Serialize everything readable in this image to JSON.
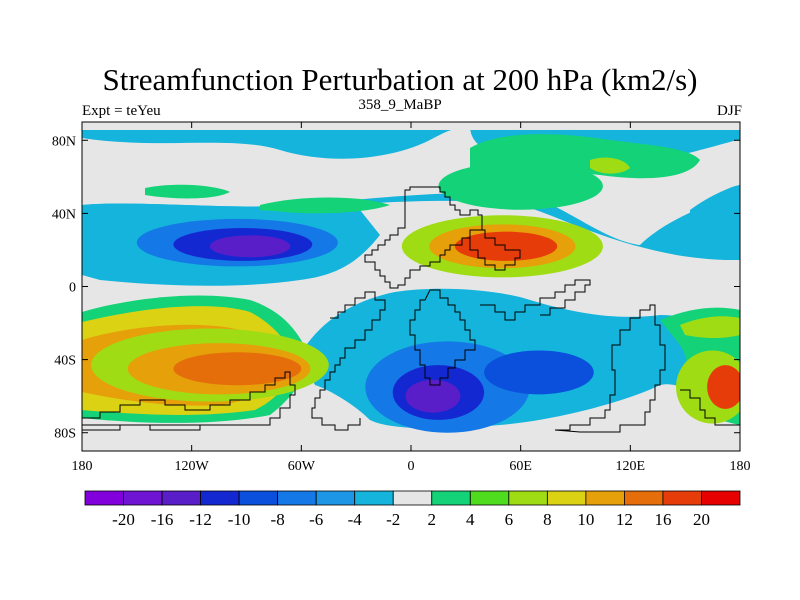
{
  "title": "Streamfunction Perturbation at 200 hPa (km2/s)",
  "left_label": "Expt = teYeu",
  "center_label": "358_9_MaBP",
  "right_label": "DJF",
  "map": {
    "projection": "cylindrical-equidistant",
    "lon_range": [
      -180,
      180
    ],
    "lat_range": [
      -90,
      90
    ],
    "x_ticks": [
      {
        "value": -180,
        "label": "180"
      },
      {
        "value": -120,
        "label": "120W"
      },
      {
        "value": -60,
        "label": "60W"
      },
      {
        "value": 0,
        "label": "0"
      },
      {
        "value": 60,
        "label": "60E"
      },
      {
        "value": 120,
        "label": "120E"
      },
      {
        "value": 180,
        "label": "180"
      }
    ],
    "y_ticks": [
      {
        "value": 80,
        "label": "80N"
      },
      {
        "value": 40,
        "label": "40N"
      },
      {
        "value": 0,
        "label": "0"
      },
      {
        "value": -40,
        "label": "40S"
      },
      {
        "value": -80,
        "label": "80S"
      }
    ]
  },
  "colorbar": {
    "labels": [
      "-20",
      "-16",
      "-12",
      "-10",
      "-8",
      "-6",
      "-4",
      "-2",
      "2",
      "4",
      "6",
      "8",
      "10",
      "12",
      "16",
      "20"
    ],
    "colors": [
      "#8200dc",
      "#6e14d2",
      "#5a1ec8",
      "#1428d2",
      "#0a50dc",
      "#1478e6",
      "#1e96e6",
      "#14b4dc",
      "#e6e6e6",
      "#14d278",
      "#50dc1e",
      "#a0dc14",
      "#dcd214",
      "#e6a00a",
      "#e66e0a",
      "#e63c0a",
      "#e60000"
    ]
  },
  "field_blobs": [
    {
      "lon": -95,
      "lat": 25,
      "rx": 70,
      "ry": 17,
      "level": -4
    },
    {
      "lon": -95,
      "lat": 24,
      "rx": 55,
      "ry": 13,
      "level": -8
    },
    {
      "lon": -92,
      "lat": 23,
      "rx": 38,
      "ry": 9,
      "level": -12
    },
    {
      "lon": -88,
      "lat": 22,
      "rx": 22,
      "ry": 6,
      "level": -16
    },
    {
      "lon": -110,
      "lat": -43,
      "rx": 65,
      "ry": 20,
      "level": 6
    },
    {
      "lon": -105,
      "lat": -45,
      "rx": 50,
      "ry": 14,
      "level": 10
    },
    {
      "lon": -95,
      "lat": -45,
      "rx": 35,
      "ry": 9,
      "level": 12
    },
    {
      "lon": 50,
      "lat": 22,
      "rx": 55,
      "ry": 17,
      "level": 6
    },
    {
      "lon": 50,
      "lat": 22,
      "rx": 40,
      "ry": 12,
      "level": 10
    },
    {
      "lon": 52,
      "lat": 22,
      "rx": 28,
      "ry": 8,
      "level": 16
    },
    {
      "lon": 60,
      "lat": 55,
      "rx": 45,
      "ry": 13,
      "level": 2
    },
    {
      "lon": 35,
      "lat": -45,
      "rx": 75,
      "ry": 30,
      "level": -4
    },
    {
      "lon": 20,
      "lat": -55,
      "rx": 45,
      "ry": 25,
      "level": -8
    },
    {
      "lon": 15,
      "lat": -58,
      "rx": 25,
      "ry": 15,
      "level": -12
    },
    {
      "lon": 12,
      "lat": -60,
      "rx": 15,
      "ry": 9,
      "level": -16
    },
    {
      "lon": 70,
      "lat": -47,
      "rx": 30,
      "ry": 12,
      "level": -10
    },
    {
      "lon": 165,
      "lat": -55,
      "rx": 20,
      "ry": 20,
      "level": 6
    },
    {
      "lon": 172,
      "lat": -55,
      "rx": 10,
      "ry": 12,
      "level": 16
    }
  ]
}
